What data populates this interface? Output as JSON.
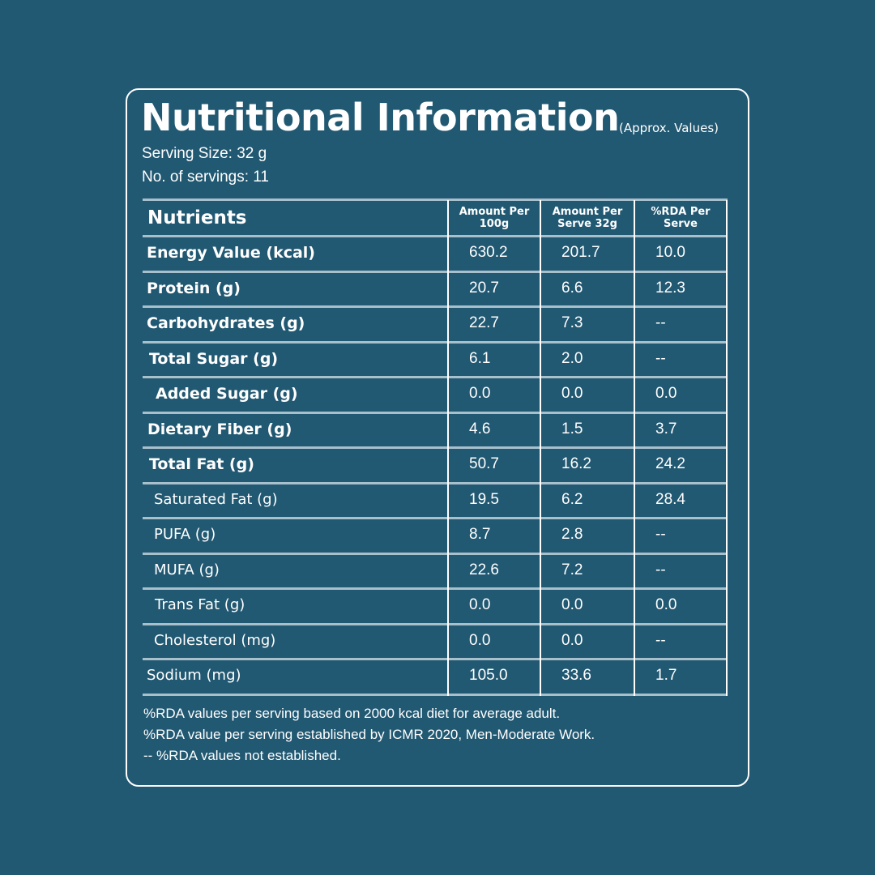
{
  "header": {
    "title": "Nutritional Information",
    "title_note": "(Approx. Values)",
    "serving_size": "Serving Size: 32 g",
    "servings": "No. of servings: 11"
  },
  "table": {
    "columns": [
      "Nutrients",
      "Amount Per 100g",
      "Amount Per Serve 32g",
      "%RDA Per Serve"
    ],
    "rows": [
      [
        "Energy Value (kcal)",
        "630.2",
        "201.7",
        "10.0"
      ],
      [
        "Protein (g)",
        "20.7",
        "6.6",
        "12.3"
      ],
      [
        "Carbohydrates (g)",
        "22.7",
        "7.3",
        "--"
      ],
      [
        "Total Sugar (g)",
        "6.1",
        "2.0",
        "--"
      ],
      [
        "Added Sugar (g)",
        "0.0",
        "0.0",
        "0.0"
      ],
      [
        "Dietary Fiber (g)",
        "4.6",
        "1.5",
        "3.7"
      ],
      [
        "Total Fat (g)",
        "50.7",
        "16.2",
        "24.2"
      ],
      [
        "Saturated Fat (g)",
        "19.5",
        "6.2",
        "28.4"
      ],
      [
        "PUFA (g)",
        "8.7",
        "2.8",
        "--"
      ],
      [
        "MUFA (g)",
        "22.6",
        "7.2",
        "--"
      ],
      [
        "Trans Fat (g)",
        "0.0",
        "0.0",
        "0.0"
      ],
      [
        "Cholesterol (mg)",
        "0.0",
        "0.0",
        "--"
      ],
      [
        "Sodium (mg)",
        "105.0",
        "33.6",
        "1.7"
      ]
    ]
  },
  "footnotes": [
    "%RDA values per serving based on 2000 kcal diet for average adult.",
    "%RDA value per serving established by ICMR 2020, Men-Moderate Work.",
    "-- %RDA values not established."
  ]
}
